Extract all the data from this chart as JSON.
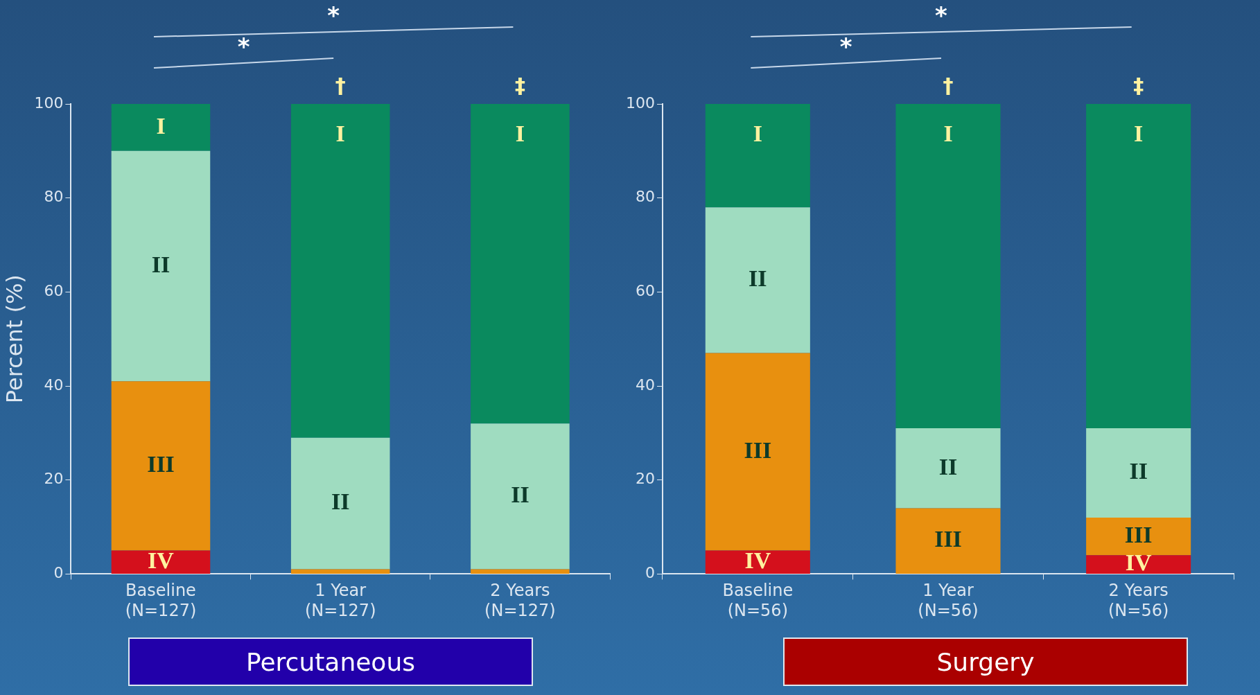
{
  "chart_data": [
    {
      "type": "bar",
      "title": "Percutaneous",
      "ylabel": "Percent (%)",
      "stacked": true,
      "categories": [
        "Baseline\n(N=127)",
        "1 Year\n(N=127)",
        "2 Years\n(N=127)"
      ],
      "series": [
        {
          "name": "IV",
          "color": "#d4101c",
          "values": [
            5,
            0,
            0
          ]
        },
        {
          "name": "III",
          "color": "#e8900f",
          "values": [
            36,
            1,
            1
          ]
        },
        {
          "name": "II",
          "color": "#9fdcc0",
          "values": [
            49,
            28,
            31
          ]
        },
        {
          "name": "I",
          "color": "#0a8a5e",
          "values": [
            10,
            71,
            68
          ]
        }
      ],
      "ylim": [
        0,
        100
      ],
      "yticks": [
        0,
        20,
        40,
        60,
        80,
        100
      ],
      "annotations": [
        "*",
        "*",
        {
          "text": "†",
          "x": "1 Year\n(N=127)",
          "y": 100
        },
        {
          "text": "‡",
          "x": "2 Years\n(N=127)",
          "y": 100
        }
      ]
    },
    {
      "type": "bar",
      "title": "Surgery",
      "stacked": true,
      "categories": [
        "Baseline\n(N=56)",
        "1 Year\n(N=56)",
        "2 Years\n(N=56)"
      ],
      "series": [
        {
          "name": "IV",
          "color": "#d4101c",
          "values": [
            5,
            0,
            4
          ]
        },
        {
          "name": "III",
          "color": "#e8900f",
          "values": [
            42,
            14,
            8
          ]
        },
        {
          "name": "II",
          "color": "#9fdcc0",
          "values": [
            31,
            17,
            19
          ]
        },
        {
          "name": "I",
          "color": "#0a8a5e",
          "values": [
            22,
            69,
            69
          ]
        }
      ],
      "ylim": [
        0,
        100
      ],
      "yticks": [
        0,
        20,
        40,
        60,
        80,
        100
      ],
      "annotations": [
        "*",
        "*",
        {
          "text": "†",
          "x": "1 Year\n(N=56)",
          "y": 100
        },
        {
          "text": "‡",
          "x": "2 Years\n(N=56)",
          "y": 100
        }
      ]
    }
  ]
}
